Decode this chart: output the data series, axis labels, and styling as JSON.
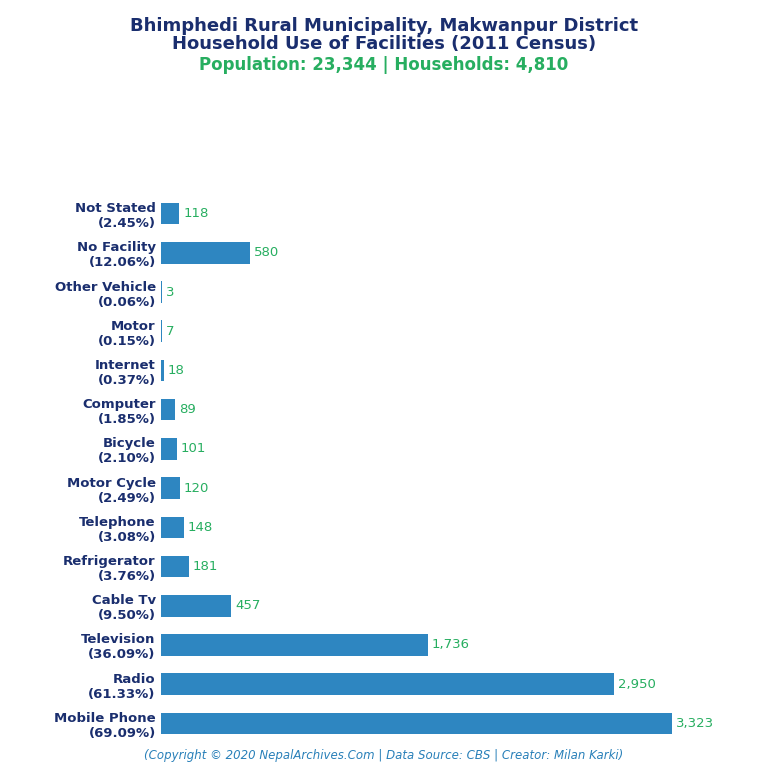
{
  "title_line1": "Bhimphedi Rural Municipality, Makwanpur District",
  "title_line2": "Household Use of Facilities (2011 Census)",
  "subtitle": "Population: 23,344 | Households: 4,810",
  "footer": "(Copyright © 2020 NepalArchives.Com | Data Source: CBS | Creator: Milan Karki)",
  "categories": [
    "Not Stated\n(2.45%)",
    "No Facility\n(12.06%)",
    "Other Vehicle\n(0.06%)",
    "Motor\n(0.15%)",
    "Internet\n(0.37%)",
    "Computer\n(1.85%)",
    "Bicycle\n(2.10%)",
    "Motor Cycle\n(2.49%)",
    "Telephone\n(3.08%)",
    "Refrigerator\n(3.76%)",
    "Cable Tv\n(9.50%)",
    "Television\n(36.09%)",
    "Radio\n(61.33%)",
    "Mobile Phone\n(69.09%)"
  ],
  "values": [
    118,
    580,
    3,
    7,
    18,
    89,
    101,
    120,
    148,
    181,
    457,
    1736,
    2950,
    3323
  ],
  "bar_color": "#2e86c1",
  "value_color": "#27ae60",
  "title_color": "#1a2e6e",
  "subtitle_color": "#27ae60",
  "footer_color": "#2980b9",
  "background_color": "#ffffff",
  "xlim": [
    0,
    3600
  ],
  "title_fontsize": 13,
  "subtitle_fontsize": 12,
  "label_fontsize": 9.5,
  "value_fontsize": 9.5,
  "footer_fontsize": 8.5
}
